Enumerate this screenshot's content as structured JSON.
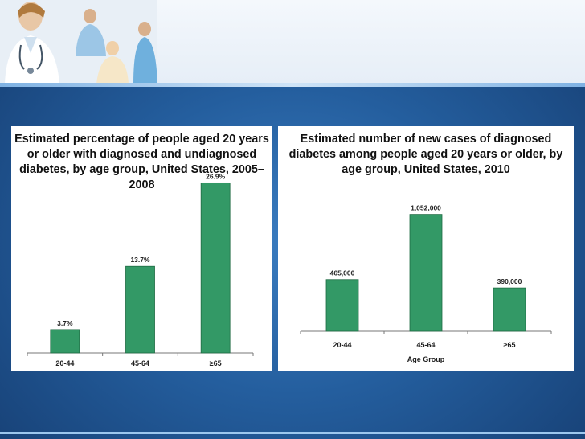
{
  "header": {
    "photo_icon": "medical-staff-photo"
  },
  "chart_data": [
    {
      "type": "bar",
      "title": "Estimated percentage of people aged 20 years or older with diagnosed and undiagnosed diabetes, by age group, United States,     2005–2008",
      "categories": [
        "20-44",
        "45-64",
        "≥65"
      ],
      "values": [
        3.7,
        13.7,
        26.9
      ],
      "value_labels": [
        "3.7%",
        "13.7%",
        "26.9%"
      ],
      "xlabel": "",
      "ylabel": "",
      "ylim": [
        0,
        30
      ],
      "grid": false,
      "bar_color": "#339966"
    },
    {
      "type": "bar",
      "title": "Estimated number of new cases of diagnosed diabetes among people aged 20 years or older, by age group, United States, 2010",
      "categories": [
        "20-44",
        "45-64",
        "≥65"
      ],
      "values": [
        465000,
        1052000,
        390000
      ],
      "value_labels": [
        "465,000",
        "1,052,000",
        "390,000"
      ],
      "xlabel": "Age Group",
      "ylabel": "",
      "ylim": [
        0,
        1100000
      ],
      "grid": false,
      "bar_color": "#339966"
    }
  ]
}
